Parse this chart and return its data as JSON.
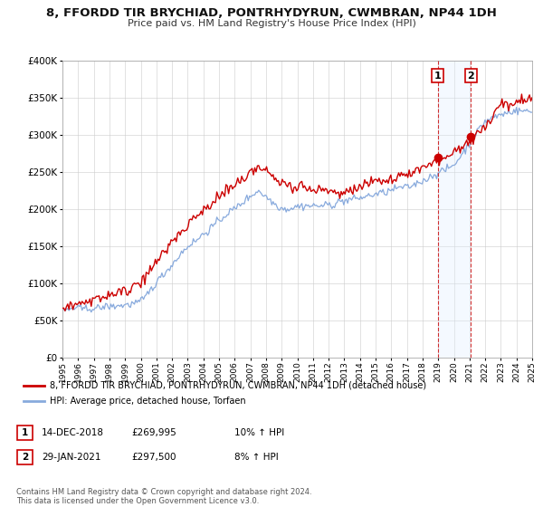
{
  "title": "8, FFORDD TIR BRYCHIAD, PONTRHYDYRUN, CWMBRAN, NP44 1DH",
  "subtitle": "Price paid vs. HM Land Registry's House Price Index (HPI)",
  "legend_label_red": "8, FFORDD TIR BRYCHIAD, PONTRHYDYRUN, CWMBRAN, NP44 1DH (detached house)",
  "legend_label_blue": "HPI: Average price, detached house, Torfaen",
  "footnote1": "Contains HM Land Registry data © Crown copyright and database right 2024.",
  "footnote2": "This data is licensed under the Open Government Licence v3.0.",
  "sale1_label": "1",
  "sale1_date": "14-DEC-2018",
  "sale1_price": "£269,995",
  "sale1_hpi": "10% ↑ HPI",
  "sale2_label": "2",
  "sale2_date": "29-JAN-2021",
  "sale2_price": "£297,500",
  "sale2_hpi": "8% ↑ HPI",
  "sale1_year": 2018.96,
  "sale1_value": 269995,
  "sale2_year": 2021.08,
  "sale2_value": 297500,
  "red_color": "#cc0000",
  "blue_color": "#88aadd",
  "shade_color": "#ddeeff",
  "vline_color": "#cc0000",
  "ylim": [
    0,
    400000
  ],
  "xlim_start": 1995,
  "xlim_end": 2025,
  "bg_color": "#ffffff",
  "grid_color": "#cccccc",
  "title_fontsize": 9.5,
  "subtitle_fontsize": 8,
  "tick_fontsize": 6.5,
  "ytick_fontsize": 7.5,
  "legend_fontsize": 7,
  "annot_fontsize": 7.5,
  "footnote_fontsize": 6
}
